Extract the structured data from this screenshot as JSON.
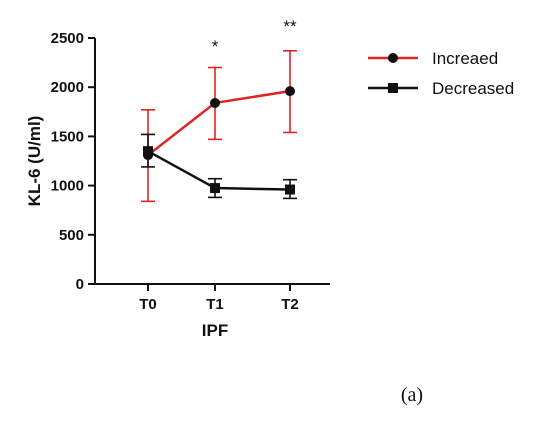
{
  "chart_data": {
    "type": "line",
    "title": "",
    "xlabel": "IPF",
    "ylabel": "KL-6 (U/ml)",
    "ylim": [
      0,
      2500
    ],
    "yticks": [
      0,
      500,
      1000,
      1500,
      2000,
      2500
    ],
    "categories": [
      "T0",
      "T1",
      "T2"
    ],
    "grid": false,
    "legend_position": "top-right",
    "series": [
      {
        "name": "Increaed",
        "color": "#e02424",
        "marker": "circle",
        "values": [
          1310,
          1840,
          1960
        ],
        "error_low": [
          840,
          1470,
          1540
        ],
        "error_high": [
          1770,
          2200,
          2370
        ]
      },
      {
        "name": "Decreased",
        "color": "#111111",
        "marker": "square",
        "values": [
          1350,
          975,
          960
        ],
        "error_low": [
          1190,
          880,
          870
        ],
        "error_high": [
          1520,
          1070,
          1060
        ]
      }
    ],
    "significance": [
      {
        "category": "T1",
        "label": "*"
      },
      {
        "category": "T2",
        "label": "**"
      }
    ]
  },
  "panel_label": "(a)"
}
